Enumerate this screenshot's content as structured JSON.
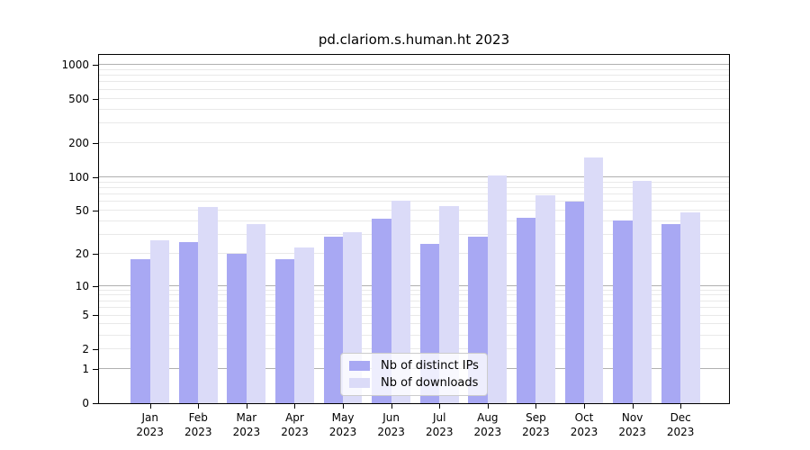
{
  "chart_data": {
    "type": "bar",
    "title": "pd.clariom.s.human.ht 2023",
    "categories": [
      "Jan",
      "Feb",
      "Mar",
      "Apr",
      "May",
      "Jun",
      "Jul",
      "Aug",
      "Sep",
      "Oct",
      "Nov",
      "Dec"
    ],
    "category_year": "2023",
    "series": [
      {
        "name": "Nb of distinct IPs",
        "color": "#a8a8f3",
        "values": [
          18,
          26,
          20,
          18,
          29,
          42,
          25,
          29,
          43,
          60,
          41,
          38
        ]
      },
      {
        "name": "Nb of downloads",
        "color": "#dbdbf8",
        "values": [
          27,
          54,
          38,
          23,
          32,
          62,
          55,
          104,
          69,
          150,
          93,
          48
        ]
      }
    ],
    "y_axis": {
      "scale": "log1p",
      "min": 0,
      "max": 1225,
      "tick_labels": [
        1000,
        500,
        200,
        100,
        50,
        20,
        10,
        5,
        2,
        1,
        0
      ],
      "grid_major": [
        1,
        10,
        100,
        1000
      ],
      "grid_minor": [
        2,
        3,
        4,
        5,
        6,
        7,
        8,
        9,
        20,
        30,
        40,
        50,
        60,
        70,
        80,
        90,
        200,
        300,
        400,
        500,
        600,
        700,
        800,
        900
      ]
    },
    "legend": {
      "position": "inside-bottom-center"
    },
    "style": {
      "grid_major_color": "#b0b0b0",
      "grid_minor_color": "#e9e9e9",
      "axis_color": "#000000",
      "text_color": "#000000",
      "legend_border_color": "#cccccc",
      "legend_bg_color": "rgba(255,255,255,0.8)"
    }
  }
}
